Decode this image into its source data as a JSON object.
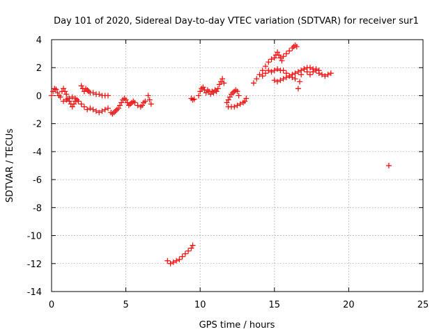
{
  "chart_data": {
    "type": "scatter",
    "title": "Day 101 of 2020, Sidereal Day-to-day VTEC variation (SDTVAR) for receiver sur1",
    "xlabel": "GPS time / hours",
    "ylabel": "SDTVAR / TECUs",
    "xlim": [
      0,
      25
    ],
    "ylim": [
      -14,
      4
    ],
    "x_ticks": [
      0,
      5,
      10,
      15,
      20,
      25
    ],
    "x_tick_labels": [
      "0",
      "5",
      "10",
      "15",
      "20",
      "25"
    ],
    "y_ticks": [
      4,
      2,
      0,
      -2,
      -4,
      -6,
      -8,
      -10,
      -12,
      -14
    ],
    "y_tick_labels": [
      "4",
      "2",
      "0",
      "-2",
      "-4",
      "-6",
      "-8",
      "-10",
      "-12",
      "-14"
    ],
    "grid": true,
    "marker": "+",
    "color": "#ff0000",
    "series": [
      {
        "name": "SDTVAR",
        "points": [
          [
            0.0,
            0.0
          ],
          [
            0.1,
            0.3
          ],
          [
            0.2,
            0.5
          ],
          [
            0.3,
            0.45
          ],
          [
            0.4,
            0.2
          ],
          [
            0.5,
            0.0
          ],
          [
            0.6,
            -0.1
          ],
          [
            0.7,
            0.3
          ],
          [
            0.8,
            0.5
          ],
          [
            0.9,
            0.3
          ],
          [
            1.0,
            0.1
          ],
          [
            1.1,
            -0.2
          ],
          [
            1.2,
            -0.4
          ],
          [
            1.3,
            -0.6
          ],
          [
            1.4,
            -0.8
          ],
          [
            1.5,
            -0.6
          ],
          [
            1.6,
            -0.4
          ],
          [
            1.7,
            -0.3
          ],
          [
            0.8,
            -0.4
          ],
          [
            1.0,
            -0.3
          ],
          [
            1.2,
            -0.2
          ],
          [
            1.4,
            -0.1
          ],
          [
            1.6,
            -0.2
          ],
          [
            1.8,
            -0.4
          ],
          [
            2.0,
            -0.6
          ],
          [
            2.2,
            -0.8
          ],
          [
            2.4,
            -1.0
          ],
          [
            2.6,
            -0.9
          ],
          [
            2.8,
            -1.0
          ],
          [
            3.0,
            -1.1
          ],
          [
            3.2,
            -1.2
          ],
          [
            3.4,
            -1.1
          ],
          [
            3.6,
            -1.0
          ],
          [
            3.8,
            -0.9
          ],
          [
            2.0,
            0.7
          ],
          [
            2.1,
            0.5
          ],
          [
            2.2,
            0.3
          ],
          [
            2.3,
            0.5
          ],
          [
            2.4,
            0.4
          ],
          [
            2.5,
            0.3
          ],
          [
            2.6,
            0.2
          ],
          [
            2.8,
            0.2
          ],
          [
            3.0,
            0.1
          ],
          [
            3.2,
            0.1
          ],
          [
            3.4,
            0.0
          ],
          [
            3.6,
            0.0
          ],
          [
            3.8,
            0.0
          ],
          [
            4.0,
            -1.2
          ],
          [
            4.1,
            -1.3
          ],
          [
            4.2,
            -1.2
          ],
          [
            4.3,
            -1.1
          ],
          [
            4.4,
            -1.0
          ],
          [
            4.5,
            -0.9
          ],
          [
            4.6,
            -0.7
          ],
          [
            4.7,
            -0.5
          ],
          [
            4.8,
            -0.3
          ],
          [
            4.9,
            -0.2
          ],
          [
            5.0,
            -0.3
          ],
          [
            5.1,
            -0.5
          ],
          [
            5.2,
            -0.7
          ],
          [
            5.3,
            -0.6
          ],
          [
            5.4,
            -0.5
          ],
          [
            5.5,
            -0.4
          ],
          [
            5.6,
            -0.5
          ],
          [
            5.8,
            -0.7
          ],
          [
            6.0,
            -0.8
          ],
          [
            6.1,
            -0.7
          ],
          [
            6.2,
            -0.5
          ],
          [
            6.3,
            -0.4
          ],
          [
            6.5,
            0.0
          ],
          [
            6.6,
            -0.3
          ],
          [
            6.7,
            -0.6
          ],
          [
            9.4,
            -0.2
          ],
          [
            9.5,
            -0.3
          ],
          [
            9.6,
            -0.25
          ],
          [
            9.9,
            0.0
          ],
          [
            10.0,
            0.3
          ],
          [
            10.1,
            0.5
          ],
          [
            10.2,
            0.6
          ],
          [
            10.3,
            0.4
          ],
          [
            10.4,
            0.2
          ],
          [
            10.5,
            0.4
          ],
          [
            10.6,
            0.3
          ],
          [
            10.7,
            0.1
          ],
          [
            10.8,
            0.3
          ],
          [
            10.9,
            0.2
          ],
          [
            11.0,
            0.4
          ],
          [
            11.1,
            0.3
          ],
          [
            11.2,
            0.5
          ],
          [
            11.3,
            0.8
          ],
          [
            11.4,
            1.0
          ],
          [
            11.5,
            1.2
          ],
          [
            11.6,
            0.9
          ],
          [
            11.8,
            -0.5
          ],
          [
            11.9,
            -0.3
          ],
          [
            12.0,
            -0.1
          ],
          [
            12.1,
            0.1
          ],
          [
            12.2,
            0.2
          ],
          [
            12.3,
            0.3
          ],
          [
            12.4,
            0.4
          ],
          [
            12.5,
            0.3
          ],
          [
            12.6,
            0.0
          ],
          [
            11.9,
            -0.8
          ],
          [
            12.1,
            -0.8
          ],
          [
            12.3,
            -0.8
          ],
          [
            12.5,
            -0.7
          ],
          [
            12.7,
            -0.6
          ],
          [
            12.9,
            -0.5
          ],
          [
            13.0,
            -0.4
          ],
          [
            13.1,
            -0.2
          ],
          [
            13.6,
            0.9
          ],
          [
            13.8,
            1.2
          ],
          [
            14.0,
            1.5
          ],
          [
            14.2,
            1.8
          ],
          [
            14.4,
            2.1
          ],
          [
            14.6,
            2.4
          ],
          [
            14.8,
            2.6
          ],
          [
            15.0,
            2.7
          ],
          [
            15.1,
            2.9
          ],
          [
            15.2,
            3.1
          ],
          [
            15.3,
            2.9
          ],
          [
            15.4,
            2.7
          ],
          [
            15.5,
            2.5
          ],
          [
            15.6,
            2.8
          ],
          [
            15.8,
            3.0
          ],
          [
            16.0,
            3.2
          ],
          [
            16.2,
            3.4
          ],
          [
            16.3,
            3.5
          ],
          [
            16.4,
            3.6
          ],
          [
            16.5,
            3.5
          ],
          [
            14.2,
            1.4
          ],
          [
            14.4,
            1.6
          ],
          [
            14.6,
            1.8
          ],
          [
            14.8,
            1.7
          ],
          [
            15.0,
            1.8
          ],
          [
            15.2,
            1.9
          ],
          [
            15.4,
            1.8
          ],
          [
            15.6,
            1.8
          ],
          [
            15.8,
            1.6
          ],
          [
            16.0,
            1.4
          ],
          [
            16.2,
            1.3
          ],
          [
            16.4,
            1.2
          ],
          [
            15.0,
            1.1
          ],
          [
            15.2,
            1.0
          ],
          [
            15.4,
            1.1
          ],
          [
            15.6,
            1.2
          ],
          [
            15.8,
            1.3
          ],
          [
            16.0,
            1.4
          ],
          [
            16.2,
            1.5
          ],
          [
            16.4,
            1.6
          ],
          [
            16.6,
            1.7
          ],
          [
            16.8,
            1.8
          ],
          [
            17.0,
            1.9
          ],
          [
            17.2,
            2.0
          ],
          [
            17.4,
            2.0
          ],
          [
            17.6,
            1.9
          ],
          [
            17.8,
            1.8
          ],
          [
            18.0,
            1.6
          ],
          [
            18.2,
            1.5
          ],
          [
            18.4,
            1.4
          ],
          [
            18.6,
            1.5
          ],
          [
            18.8,
            1.6
          ],
          [
            16.6,
            0.5
          ],
          [
            16.7,
            1.0
          ],
          [
            16.8,
            1.5
          ],
          [
            17.0,
            1.9
          ],
          [
            17.2,
            1.7
          ],
          [
            17.4,
            1.5
          ],
          [
            17.6,
            1.7
          ],
          [
            17.8,
            1.9
          ],
          [
            18.0,
            1.8
          ],
          [
            7.8,
            -11.8
          ],
          [
            8.0,
            -12.0
          ],
          [
            8.2,
            -11.9
          ],
          [
            8.4,
            -11.8
          ],
          [
            8.6,
            -11.7
          ],
          [
            8.8,
            -11.5
          ],
          [
            9.0,
            -11.3
          ],
          [
            9.2,
            -11.1
          ],
          [
            9.4,
            -10.9
          ],
          [
            9.5,
            -10.7
          ],
          [
            22.7,
            -5.0
          ]
        ]
      }
    ]
  }
}
